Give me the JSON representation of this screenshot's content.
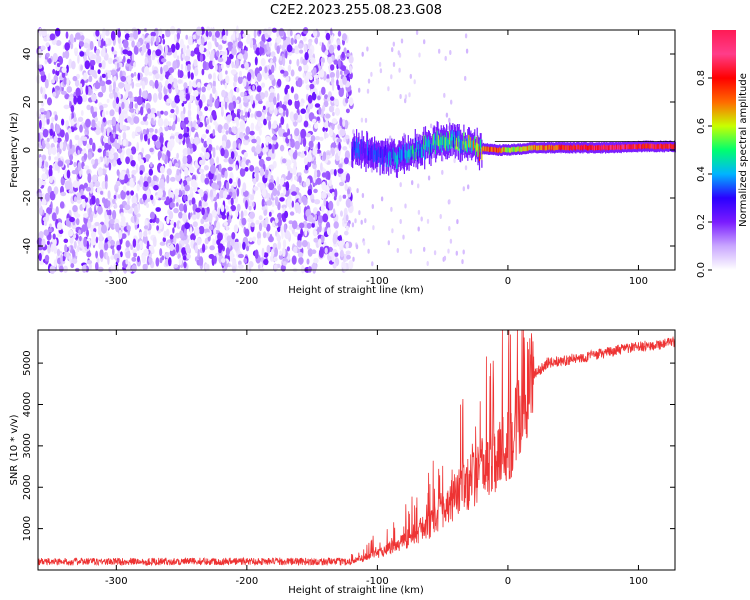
{
  "title": "C2E2.2023.255.08.23.G08",
  "chart_data": [
    {
      "type": "heatmap",
      "xlabel": "Height of straight line (km)",
      "ylabel": "Frequency (Hz)",
      "xlim": [
        -360,
        128
      ],
      "ylim": [
        -50,
        50
      ],
      "x_ticks": [
        -300,
        -200,
        -100,
        0,
        100
      ],
      "y_ticks": [
        -40,
        -20,
        0,
        20,
        40
      ],
      "colorbar": {
        "label": "Normalized spectral amplitude",
        "range": [
          0,
          1
        ],
        "ticks": [
          0.0,
          0.2,
          0.4,
          0.6,
          0.8
        ],
        "colors": [
          "#ffffff",
          "#c9a6ff",
          "#7a1cff",
          "#2a00ff",
          "#00b4ff",
          "#00ff6e",
          "#c8ff00",
          "#ff6a00",
          "#ff0000",
          "#ff3d8a",
          "#ff1a55"
        ]
      },
      "features": {
        "noise_region_x": [
          -360,
          -120
        ],
        "noise_amplitude_range": [
          0.0,
          0.2
        ],
        "tone_track": [
          {
            "x": -120,
            "f": 0,
            "amp": 0.3
          },
          {
            "x": -100,
            "f": -2,
            "amp": 0.35
          },
          {
            "x": -85,
            "f": -3,
            "amp": 0.4
          },
          {
            "x": -70,
            "f": 0,
            "amp": 0.45
          },
          {
            "x": -55,
            "f": 3,
            "amp": 0.5
          },
          {
            "x": -40,
            "f": 4,
            "amp": 0.5
          },
          {
            "x": -25,
            "f": 1,
            "amp": 0.65
          },
          {
            "x": -10,
            "f": 0,
            "amp": 0.8
          },
          {
            "x": 0,
            "f": 0,
            "amp": 0.6
          },
          {
            "x": 20,
            "f": 1,
            "amp": 0.7
          },
          {
            "x": 50,
            "f": 1,
            "amp": 0.85
          },
          {
            "x": 80,
            "f": 1,
            "amp": 0.9
          },
          {
            "x": 100,
            "f": 1.5,
            "amp": 0.85
          },
          {
            "x": 128,
            "f": 1.5,
            "amp": 0.85
          }
        ]
      }
    },
    {
      "type": "line",
      "xlabel": "Height of straight line (km)",
      "ylabel": "SNR (10 * v/v)",
      "xlim": [
        -360,
        128
      ],
      "ylim": [
        0,
        5800
      ],
      "x_ticks": [
        -300,
        -200,
        -100,
        0,
        100
      ],
      "y_ticks": [
        1000,
        2000,
        3000,
        4000,
        5000
      ],
      "color": "#ee3333",
      "profile": [
        {
          "x": -360,
          "y": 200
        },
        {
          "x": -200,
          "y": 210
        },
        {
          "x": -120,
          "y": 200
        },
        {
          "x": -100,
          "y": 400
        },
        {
          "x": -80,
          "y": 700
        },
        {
          "x": -60,
          "y": 1100
        },
        {
          "x": -40,
          "y": 1800
        },
        {
          "x": -20,
          "y": 2400
        },
        {
          "x": 0,
          "y": 3000
        },
        {
          "x": 10,
          "y": 3800
        },
        {
          "x": 20,
          "y": 4700
        },
        {
          "x": 30,
          "y": 5000
        },
        {
          "x": 60,
          "y": 5150
        },
        {
          "x": 90,
          "y": 5350
        },
        {
          "x": 128,
          "y": 5500
        }
      ]
    }
  ]
}
